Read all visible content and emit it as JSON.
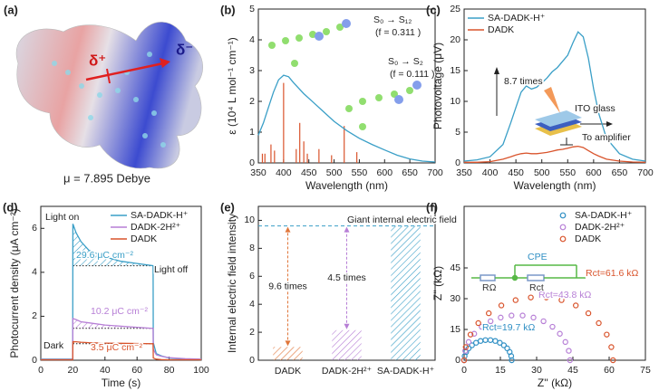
{
  "molecule": {
    "label": "(a)",
    "delta_plus": "δ⁺",
    "delta_minus": "δ⁻",
    "dipole": "μ = 7.895 Debye"
  },
  "chart_data": [
    {
      "type": "line",
      "label": "(b)",
      "xlabel": "Wavelength (nm)",
      "ylabel": "ε (10⁴ L mol⁻¹ cm⁻¹)",
      "xlim": [
        350,
        700
      ],
      "xticks": [
        350,
        400,
        450,
        500,
        550,
        600,
        650,
        700
      ],
      "ylim": [
        0,
        5
      ],
      "yticks": [
        0,
        1,
        2,
        3,
        4,
        5
      ],
      "x": [
        350,
        360,
        370,
        380,
        390,
        400,
        410,
        420,
        440,
        460,
        480,
        500,
        525,
        550,
        575,
        600,
        625,
        650,
        675,
        700
      ],
      "values": [
        0.9,
        1.3,
        1.8,
        2.3,
        2.7,
        2.85,
        2.8,
        2.6,
        2.25,
        1.95,
        1.65,
        1.35,
        1.05,
        0.8,
        0.6,
        0.42,
        0.25,
        0.13,
        0.06,
        0.03
      ],
      "color": "#3a9fc7",
      "sticks": {
        "x": [
          358,
          363,
          375,
          382,
          400,
          425,
          432,
          440,
          447,
          470,
          495,
          520,
          545
        ],
        "values": [
          0.3,
          0.3,
          0.6,
          0.4,
          2.6,
          0.45,
          1.3,
          0.7,
          0.3,
          0.45,
          0.25,
          1.2,
          0.35
        ],
        "color": "#d9542c"
      },
      "annotations": [
        "S₀ → S₁₂",
        "(f = 0.311 )",
        "S₀ → S₂",
        "(f = 0.111 )"
      ]
    },
    {
      "type": "line",
      "label": "(c)",
      "xlabel": "Wavelength (nm)",
      "ylabel": "Photovoltage (μV)",
      "xlim": [
        350,
        700
      ],
      "xticks": [
        350,
        400,
        450,
        500,
        550,
        600,
        650,
        700
      ],
      "ylim": [
        0,
        25
      ],
      "yticks": [
        0,
        5,
        10,
        15,
        20,
        25
      ],
      "x": [
        350,
        375,
        400,
        425,
        440,
        450,
        460,
        470,
        480,
        490,
        500,
        510,
        520,
        530,
        540,
        550,
        560,
        570,
        580,
        590,
        600,
        610,
        625,
        650,
        675,
        700
      ],
      "series": [
        {
          "name": "SA-DADK-H⁺",
          "color": "#3a9fc7",
          "values": [
            0.3,
            0.5,
            1,
            3,
            6.5,
            9,
            11.5,
            12.5,
            12,
            12.3,
            13,
            13.8,
            14.8,
            15.5,
            16.5,
            17.5,
            19.5,
            21.3,
            20.5,
            17,
            12,
            8,
            4,
            1.5,
            0.6,
            0.3
          ]
        },
        {
          "name": "DADK",
          "color": "#d9542c",
          "values": [
            0.1,
            0.1,
            0.2,
            0.6,
            1,
            1.3,
            1.5,
            1.6,
            1.5,
            1.5,
            1.6,
            1.7,
            1.9,
            2.1,
            2.2,
            2.4,
            2.6,
            2.7,
            2.5,
            2.0,
            1.5,
            1.1,
            0.6,
            0.3,
            0.15,
            0.1
          ]
        }
      ],
      "legend": "upper left",
      "annotations": [
        "8.7 times",
        "ITO glass",
        "To amplifier"
      ]
    },
    {
      "type": "line",
      "label": "(d)",
      "xlabel": "Time (s)",
      "ylabel": "Photocurrent density (μA cm⁻²)",
      "xlim": [
        0,
        100
      ],
      "xticks": [
        0,
        20,
        40,
        60,
        80,
        100
      ],
      "ylim": [
        0,
        7
      ],
      "yticks": [
        0,
        2,
        4,
        6
      ],
      "x": [
        0,
        19.9,
        20,
        22,
        25,
        30,
        40,
        50,
        60,
        70,
        70.1,
        72,
        75,
        80,
        90,
        100
      ],
      "series": [
        {
          "name": "SA-DADK-H⁺",
          "color": "#3a9fc7",
          "values": [
            0.05,
            0.05,
            6.2,
            5.8,
            5.4,
            5.0,
            4.7,
            4.5,
            4.4,
            4.3,
            0.8,
            0.3,
            0.2,
            0.1,
            0.05,
            0.02
          ]
        },
        {
          "name": "DADK-2H²⁺",
          "color": "#b77fd6",
          "values": [
            0.03,
            0.03,
            1.9,
            1.85,
            1.75,
            1.7,
            1.6,
            1.55,
            1.5,
            1.45,
            0.5,
            0.25,
            0.18,
            0.12,
            0.07,
            0.05
          ]
        },
        {
          "name": "DADK",
          "color": "#d9542c",
          "values": [
            0.02,
            0.02,
            0.85,
            0.84,
            0.82,
            0.8,
            0.78,
            0.77,
            0.76,
            0.75,
            0.1,
            0.05,
            0.03,
            0.02,
            0.02,
            0.02
          ]
        }
      ],
      "hatched": true,
      "legend": "upper right",
      "annotations": [
        "Light on",
        "Light off",
        "Dark",
        "29.6 μC cm⁻²",
        "10.2 μC cm⁻²",
        "3.5 μC cm⁻²"
      ]
    },
    {
      "type": "bar",
      "label": "(e)",
      "ylabel": "Internal electric  field intensity",
      "categories": [
        "DADK",
        "DADK-2H²⁺",
        "SA-DADK-H⁺"
      ],
      "values": [
        0.95,
        2.15,
        9.6
      ],
      "colors": [
        "#e0763a",
        "#b77fd6",
        "#3a9fc7"
      ],
      "ylim": [
        0,
        11
      ],
      "yticks": [
        0,
        2,
        4,
        6,
        8,
        10
      ],
      "hatched": true,
      "annotations": [
        "Giant internal electric field",
        "9.6 times",
        "4.5 times"
      ]
    },
    {
      "type": "scatter",
      "label": "(f)",
      "xlabel": "Z'' (kΩ)",
      "ylabel": "Z'' (kΩ)",
      "xlim": [
        0,
        75
      ],
      "xticks": [
        0,
        15,
        30,
        45,
        60,
        75
      ],
      "ylim": [
        0,
        75
      ],
      "yticks": [
        0,
        15,
        30,
        45
      ],
      "series": [
        {
          "name": "SA-DADK-H⁺",
          "color": "#2f8fc4",
          "x": [
            0,
            0.22,
            0.85,
            1.88,
            3.26,
            4.93,
            6.81,
            8.82,
            10.88,
            12.89,
            14.78,
            16.44,
            17.82,
            18.85,
            19.48,
            19.7
          ],
          "values": [
            0,
            2.05,
            4.0,
            5.8,
            7.3,
            8.5,
            9.4,
            9.8,
            9.8,
            9.4,
            8.5,
            7.3,
            5.8,
            4.0,
            2.05,
            0
          ]
        },
        {
          "name": "DADK-2H²⁺",
          "color": "#b77fd6",
          "x": [
            0,
            0.48,
            1.88,
            4.18,
            7.25,
            10.95,
            15.13,
            19.6,
            24.2,
            28.7,
            32.85,
            36.55,
            39.6,
            41.9,
            43.3,
            43.8
          ],
          "values": [
            0,
            4.6,
            8.9,
            12.9,
            16.3,
            19.0,
            20.8,
            21.8,
            21.8,
            20.8,
            19.0,
            16.3,
            12.9,
            8.9,
            4.6,
            0
          ]
        },
        {
          "name": "DADK",
          "color": "#d9542c",
          "x": [
            0,
            0.68,
            2.65,
            5.88,
            10.2,
            15.4,
            21.3,
            27.6,
            34.0,
            40.3,
            46.2,
            51.4,
            55.7,
            59.0,
            60.9,
            61.6
          ],
          "values": [
            0,
            6.4,
            12.5,
            18.1,
            22.9,
            26.7,
            29.3,
            30.6,
            30.6,
            29.3,
            26.7,
            22.9,
            18.1,
            12.5,
            6.4,
            0
          ]
        }
      ],
      "legend": "upper right",
      "annotations": [
        "Rct=61.6 kΩ",
        "Rct=43.8 kΩ",
        "Rct=19.7 kΩ",
        "CPE",
        "RΩ",
        "Rct"
      ]
    }
  ]
}
